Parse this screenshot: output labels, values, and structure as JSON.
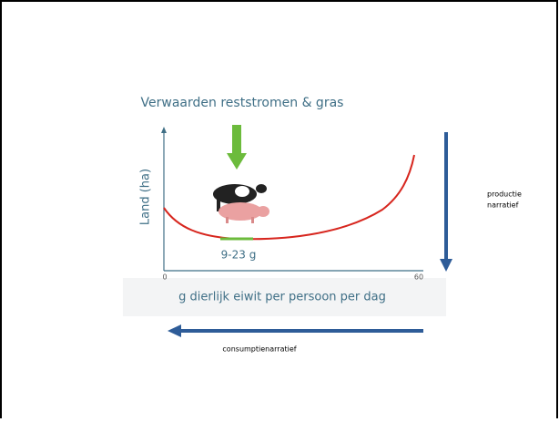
{
  "title": "Verwaarden reststromen & gras",
  "chart": {
    "y_label": "Land (ha)",
    "x_label": "g dierlijk eiwit per persoon per dag",
    "x_ticks": [
      "0",
      "60"
    ],
    "range_label": "9-23 g"
  },
  "productie_label": {
    "lines": [
      "productie",
      "narratief"
    ]
  },
  "consumptie_label": "consumptienarratief"
}
